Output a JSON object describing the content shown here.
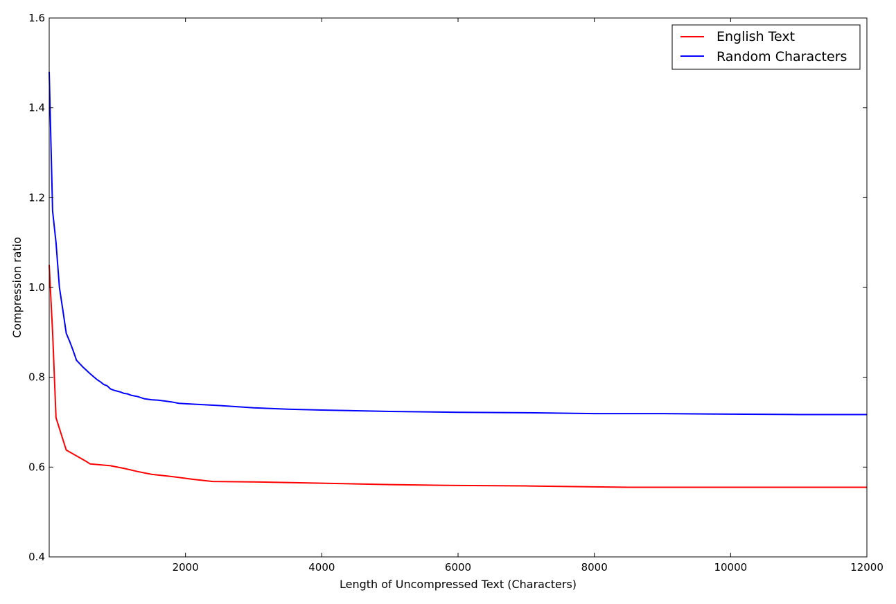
{
  "chart_data": {
    "type": "line",
    "title": "",
    "xlabel": "Length of Uncompressed Text (Characters)",
    "ylabel": "Compression ratio",
    "xlim": [
      0,
      12000
    ],
    "ylim": [
      0.4,
      1.6
    ],
    "x_ticks": [
      2000,
      4000,
      6000,
      8000,
      10000,
      12000
    ],
    "x_tick_labels": [
      "2000",
      "4000",
      "6000",
      "8000",
      "10000",
      "12000"
    ],
    "y_ticks": [
      0.4,
      0.6,
      0.8,
      1.0,
      1.2,
      1.4,
      1.6
    ],
    "y_tick_labels": [
      "0.4",
      "0.6",
      "0.8",
      "1.0",
      "1.2",
      "1.4",
      "1.6"
    ],
    "grid": false,
    "legend_position": "top-right",
    "series": [
      {
        "name": "English Text",
        "color": "#ff0000",
        "points": [
          [
            0,
            1.05
          ],
          [
            50,
            0.9
          ],
          [
            100,
            0.71
          ],
          [
            250,
            0.638
          ],
          [
            400,
            0.625
          ],
          [
            550,
            0.612
          ],
          [
            600,
            0.607
          ],
          [
            900,
            0.603
          ],
          [
            1100,
            0.597
          ],
          [
            1300,
            0.59
          ],
          [
            1500,
            0.584
          ],
          [
            1800,
            0.579
          ],
          [
            2100,
            0.573
          ],
          [
            2400,
            0.568
          ],
          [
            3000,
            0.567
          ],
          [
            4000,
            0.564
          ],
          [
            5000,
            0.561
          ],
          [
            6000,
            0.559
          ],
          [
            7000,
            0.558
          ],
          [
            8000,
            0.556
          ],
          [
            8500,
            0.555
          ],
          [
            9000,
            0.555
          ],
          [
            10000,
            0.555
          ],
          [
            11000,
            0.555
          ],
          [
            12000,
            0.555
          ]
        ]
      },
      {
        "name": "Random Characters",
        "color": "#0000ff",
        "points": [
          [
            0,
            1.48
          ],
          [
            50,
            1.17
          ],
          [
            100,
            1.1
          ],
          [
            150,
            1.0
          ],
          [
            200,
            0.95
          ],
          [
            250,
            0.898
          ],
          [
            300,
            0.88
          ],
          [
            350,
            0.86
          ],
          [
            400,
            0.838
          ],
          [
            500,
            0.822
          ],
          [
            600,
            0.808
          ],
          [
            700,
            0.795
          ],
          [
            750,
            0.79
          ],
          [
            800,
            0.784
          ],
          [
            850,
            0.781
          ],
          [
            900,
            0.774
          ],
          [
            950,
            0.771
          ],
          [
            1000,
            0.769
          ],
          [
            1050,
            0.767
          ],
          [
            1100,
            0.764
          ],
          [
            1150,
            0.763
          ],
          [
            1200,
            0.76
          ],
          [
            1300,
            0.757
          ],
          [
            1400,
            0.752
          ],
          [
            1500,
            0.75
          ],
          [
            1600,
            0.749
          ],
          [
            1700,
            0.747
          ],
          [
            1800,
            0.745
          ],
          [
            1900,
            0.742
          ],
          [
            2000,
            0.741
          ],
          [
            2500,
            0.737
          ],
          [
            3000,
            0.732
          ],
          [
            3500,
            0.729
          ],
          [
            4000,
            0.727
          ],
          [
            5000,
            0.724
          ],
          [
            6000,
            0.722
          ],
          [
            7000,
            0.721
          ],
          [
            8000,
            0.719
          ],
          [
            9000,
            0.719
          ],
          [
            10000,
            0.718
          ],
          [
            11000,
            0.717
          ],
          [
            12000,
            0.717
          ]
        ]
      }
    ]
  }
}
